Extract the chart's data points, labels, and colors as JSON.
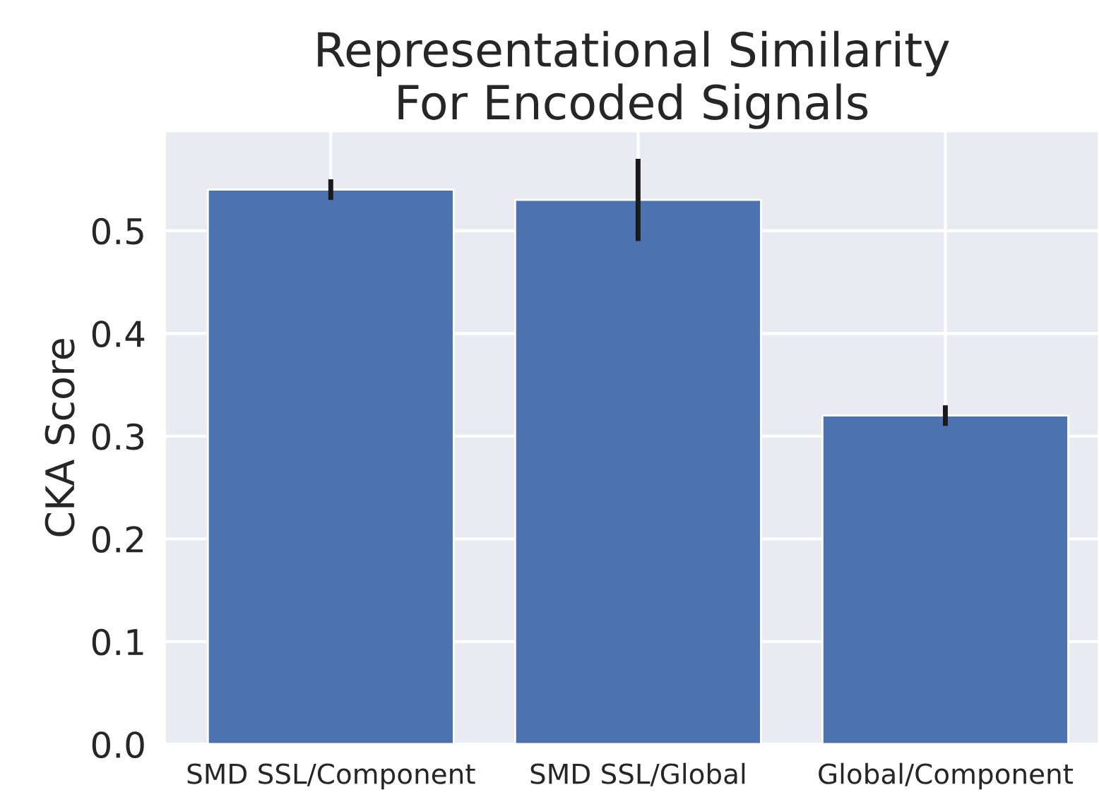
{
  "chart_data": {
    "type": "bar",
    "title": "Representational Similarity\nFor Encoded Signals",
    "ylabel": "CKA Score",
    "categories": [
      "SMD SSL/Component",
      "SMD SSL/Global",
      "Global/Component"
    ],
    "values": [
      0.54,
      0.53,
      0.32
    ],
    "errors": [
      0.01,
      0.04,
      0.01
    ],
    "color": "#4c72b0",
    "ylim": [
      0,
      0.597
    ],
    "yticks": [
      {
        "value": 0,
        "label": "0.0"
      },
      0.1,
      0.2,
      0.3,
      0.4,
      0.5
    ],
    "grid": true
  }
}
